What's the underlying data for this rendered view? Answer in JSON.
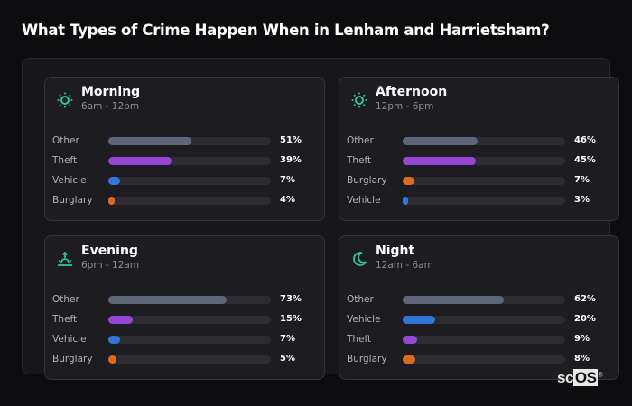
{
  "title": "What Types of Crime Happen When in Lenham and Harrietsham?",
  "colors": {
    "Other": "#5e6779",
    "Theft": "#9447d6",
    "Vehicle": "#3575d6",
    "Burglary": "#dd6a1f",
    "icon": "#2dc49a"
  },
  "cards": [
    {
      "name": "Morning",
      "range": "6am - 12pm",
      "icon": "sun-icon",
      "rows": [
        {
          "label": "Other",
          "value": 51,
          "text": "51%"
        },
        {
          "label": "Theft",
          "value": 39,
          "text": "39%"
        },
        {
          "label": "Vehicle",
          "value": 7,
          "text": "7%"
        },
        {
          "label": "Burglary",
          "value": 4,
          "text": "4%"
        }
      ]
    },
    {
      "name": "Afternoon",
      "range": "12pm - 6pm",
      "icon": "sun-icon",
      "rows": [
        {
          "label": "Other",
          "value": 46,
          "text": "46%"
        },
        {
          "label": "Theft",
          "value": 45,
          "text": "45%"
        },
        {
          "label": "Burglary",
          "value": 7,
          "text": "7%"
        },
        {
          "label": "Vehicle",
          "value": 3,
          "text": "3%"
        }
      ]
    },
    {
      "name": "Evening",
      "range": "6pm - 12am",
      "icon": "sunset-icon",
      "rows": [
        {
          "label": "Other",
          "value": 73,
          "text": "73%"
        },
        {
          "label": "Theft",
          "value": 15,
          "text": "15%"
        },
        {
          "label": "Vehicle",
          "value": 7,
          "text": "7%"
        },
        {
          "label": "Burglary",
          "value": 5,
          "text": "5%"
        }
      ]
    },
    {
      "name": "Night",
      "range": "12am - 6am",
      "icon": "moon-icon",
      "rows": [
        {
          "label": "Other",
          "value": 62,
          "text": "62%"
        },
        {
          "label": "Vehicle",
          "value": 20,
          "text": "20%"
        },
        {
          "label": "Theft",
          "value": 9,
          "text": "9%"
        },
        {
          "label": "Burglary",
          "value": 8,
          "text": "8%"
        }
      ]
    }
  ],
  "logo": {
    "sc": "sc",
    "os": "OS",
    "mark": "®"
  },
  "chart_data": {
    "type": "bar",
    "title": "What Types of Crime Happen When in Lenham and Harrietsham?",
    "orientation": "horizontal",
    "unit": "%",
    "panels": [
      {
        "title": "Morning",
        "subtitle": "6am - 12pm",
        "categories": [
          "Other",
          "Theft",
          "Vehicle",
          "Burglary"
        ],
        "values": [
          51,
          39,
          7,
          4
        ]
      },
      {
        "title": "Afternoon",
        "subtitle": "12pm - 6pm",
        "categories": [
          "Other",
          "Theft",
          "Burglary",
          "Vehicle"
        ],
        "values": [
          46,
          45,
          7,
          3
        ]
      },
      {
        "title": "Evening",
        "subtitle": "6pm - 12am",
        "categories": [
          "Other",
          "Theft",
          "Vehicle",
          "Burglary"
        ],
        "values": [
          73,
          15,
          7,
          5
        ]
      },
      {
        "title": "Night",
        "subtitle": "12am - 6am",
        "categories": [
          "Other",
          "Vehicle",
          "Theft",
          "Burglary"
        ],
        "values": [
          62,
          20,
          9,
          8
        ]
      }
    ],
    "xlim": [
      0,
      100
    ]
  }
}
